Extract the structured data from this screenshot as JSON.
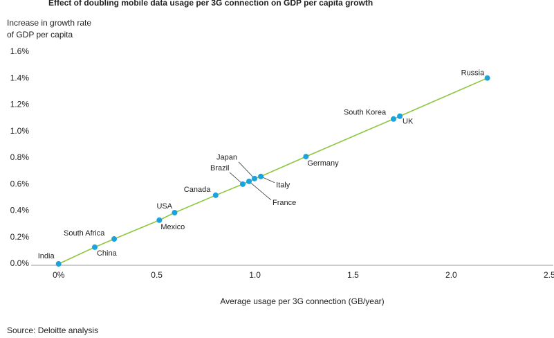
{
  "chart_data": {
    "type": "scatter",
    "title": "Effect of doubling mobile data usage per 3G connection on GDP per capita growth",
    "y_label": [
      "Increase in growth rate",
      "of GDP per capita"
    ],
    "x_label": "Average usage per 3G connection (GB/year)",
    "source": "Source: Deloitte analysis",
    "labels": [
      "India",
      "China",
      "South Africa",
      "Mexico",
      "USA",
      "Canada",
      "Brazil",
      "France",
      "Japan",
      "Italy",
      "Germany",
      "South Korea",
      "UK",
      "Russia"
    ],
    "x": [
      0,
      0.184,
      0.283,
      0.513,
      0.591,
      0.8,
      0.938,
      0.97,
      0.998,
      1.03,
      1.26,
      1.706,
      1.738,
      2.184
    ],
    "values": [
      0,
      0.126,
      0.188,
      0.33,
      0.387,
      0.518,
      0.602,
      0.623,
      0.644,
      0.66,
      0.81,
      1.094,
      1.115,
      1.403
    ],
    "point_color": "#1aa3dc",
    "line_color": "#8dc63f",
    "xlim": [
      -0.14,
      2.52
    ],
    "ylim": [
      0,
      1.6
    ],
    "xticks": [
      {
        "value": 0,
        "label": "0%"
      },
      0.5,
      {
        "value": 1,
        "label": "1.0"
      },
      1.5,
      {
        "value": 2,
        "label": "2.0"
      },
      2.5
    ],
    "yticks": [
      {
        "value": 0,
        "label": "0.0%"
      },
      {
        "value": 0.2,
        "label": "0.2%"
      },
      {
        "value": 0.4,
        "label": "0.4%"
      },
      {
        "value": 0.6,
        "label": "0.6%"
      },
      {
        "value": 0.8,
        "label": "0.8%"
      },
      {
        "value": 1,
        "label": "1.0%"
      },
      {
        "value": 1.2,
        "label": "1.2%"
      },
      {
        "value": 1.4,
        "label": "1.4%"
      },
      {
        "value": 1.6,
        "label": "1.6%"
      }
    ]
  }
}
